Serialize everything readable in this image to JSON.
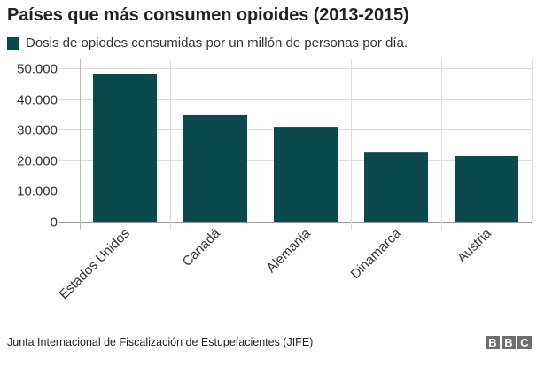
{
  "title": "Países que más consumen opioides (2013-2015)",
  "legend": {
    "label": "Dosis de opiodes consumidas por un millón de personas por día.",
    "color": "#0a4a4a"
  },
  "source": "Junta Internacional de Fiscalización de Estupefacientes (JIFE)",
  "logo": {
    "letters": [
      "B",
      "B",
      "C"
    ]
  },
  "chart_data": {
    "type": "bar",
    "title": "Países que más consumen opioides (2013-2015)",
    "xlabel": "",
    "ylabel": "",
    "categories": [
      "Estados Unidos",
      "Canadá",
      "Alemania",
      "Dinamarca",
      "Austria"
    ],
    "series": [
      {
        "name": "Dosis de opiodes consumidas por un millón de personas por día.",
        "values": [
          48000,
          34700,
          30900,
          22500,
          21400
        ],
        "color": "#0a4a4a"
      }
    ],
    "ylim": [
      0,
      50000
    ],
    "yticks": [
      0,
      10000,
      20000,
      30000,
      40000,
      50000
    ],
    "ytick_labels": [
      "0",
      "10.000",
      "20.000",
      "30.000",
      "40.000",
      "50.000"
    ],
    "grid": true,
    "legend_position": "top-left",
    "x_tick_rotation": -45
  }
}
